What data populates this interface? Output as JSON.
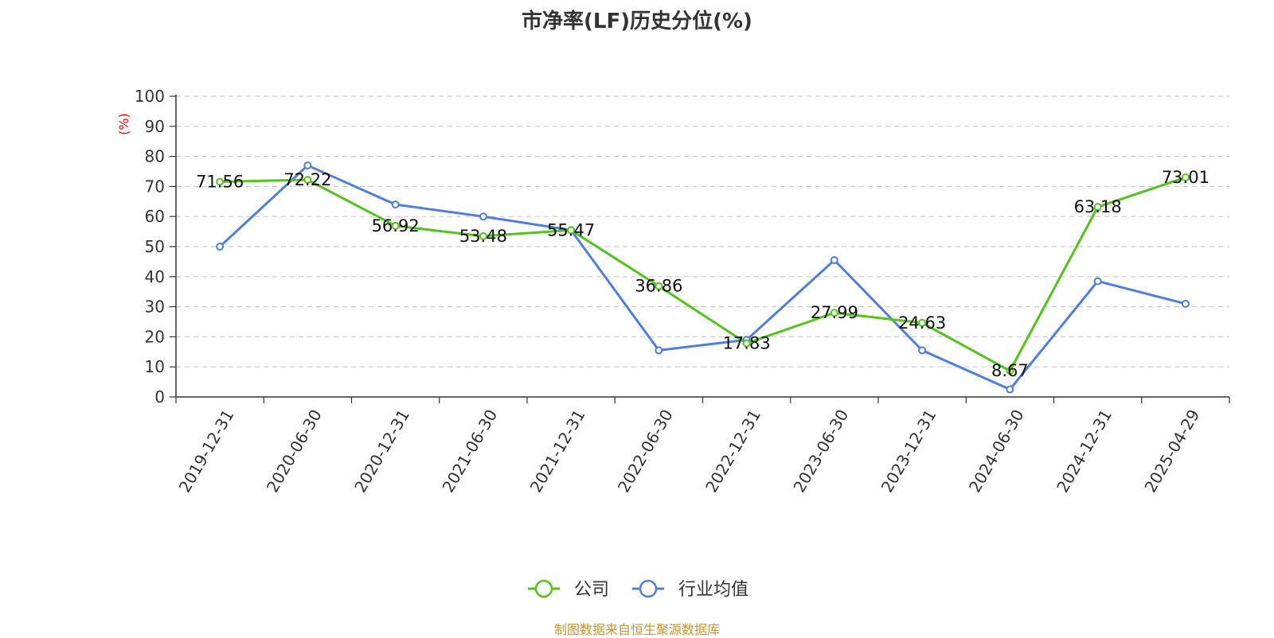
{
  "chart_data": {
    "type": "line",
    "title": "市净率(LF)历史分位(%)",
    "ylabel": "(%)",
    "ylim": [
      0,
      100
    ],
    "ytick_step": 10,
    "categories": [
      "2019-12-31",
      "2020-06-30",
      "2020-12-31",
      "2021-06-30",
      "2021-12-31",
      "2022-06-30",
      "2022-12-31",
      "2023-06-30",
      "2023-12-31",
      "2024-06-30",
      "2024-12-31",
      "2025-04-29"
    ],
    "series": [
      {
        "name": "公司",
        "color": "#52c41a",
        "values": [
          71.56,
          72.22,
          56.92,
          53.48,
          55.47,
          36.86,
          17.83,
          27.99,
          24.63,
          8.67,
          63.18,
          73.01
        ],
        "labels": [
          "71.56",
          "72.22",
          "56.92",
          "53.48",
          "55.47",
          "36.86",
          "17.83",
          "27.99",
          "24.63",
          "8.67",
          "63.18",
          "73.01"
        ]
      },
      {
        "name": "行业均值",
        "color": "#4e7fdc",
        "values": [
          50.0,
          77.0,
          64.0,
          60.0,
          55.5,
          15.5,
          19.0,
          45.5,
          15.5,
          2.5,
          38.5,
          31.0
        ]
      }
    ],
    "grid": true,
    "legend_position": "bottom-center"
  },
  "footer": {
    "source": "制图数据来自恒生聚源数据库"
  }
}
